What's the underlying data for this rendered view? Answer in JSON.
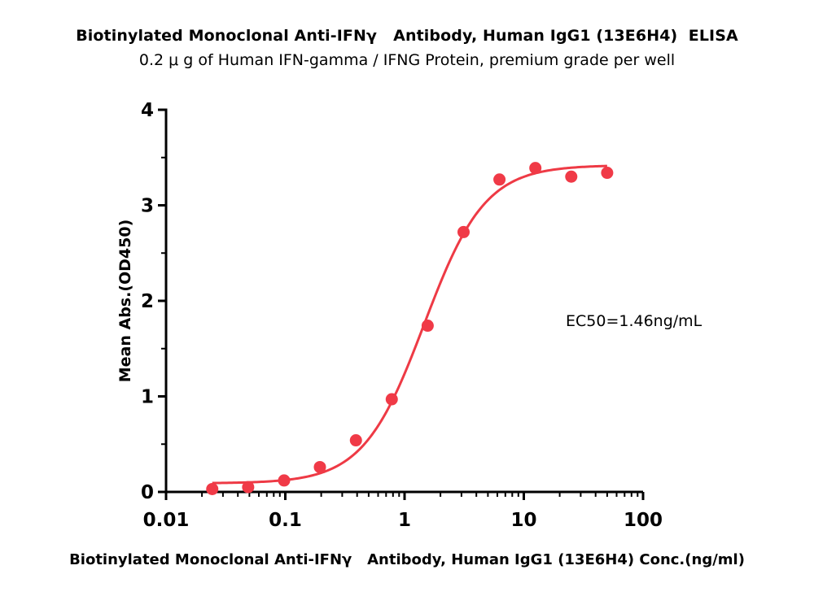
{
  "chart_data": {
    "type": "scatter",
    "title": "Biotinylated Monoclonal Anti-IFNγ   Antibody, Human IgG1 (13E6H4)  ELISA",
    "subtitle": "0.2 μ g of Human IFN-gamma / IFNG Protein, premium grade per well",
    "xlabel": "Biotinylated Monoclonal Anti-IFNγ   Antibody, Human IgG1 (13E6H4) Conc.(ng/ml)",
    "ylabel": "Mean Abs.(OD450)",
    "x_scale": "log",
    "xlim": [
      0.01,
      100
    ],
    "ylim": [
      0,
      4
    ],
    "x_ticks": [
      "0.01",
      "0.1",
      "1",
      "10",
      "100"
    ],
    "y_ticks": [
      "0",
      "1",
      "2",
      "3",
      "4"
    ],
    "grid": false,
    "annotation": "EC50=1.46ng/mL",
    "series": [
      {
        "type": "scatter",
        "x": [
          0.0244,
          0.0488,
          0.0977,
          0.195,
          0.391,
          0.781,
          1.5625,
          3.125,
          6.25,
          12.5,
          25,
          50
        ],
        "y": [
          0.03,
          0.05,
          0.12,
          0.26,
          0.54,
          0.97,
          1.74,
          2.72,
          3.27,
          3.39,
          3.3,
          3.34
        ]
      },
      {
        "type": "line",
        "fit": "4PL",
        "bottom": 0.09,
        "top": 3.42,
        "ec50": 1.46,
        "hill": 1.7,
        "x_range": [
          0.0244,
          50
        ]
      }
    ],
    "colors": {
      "points": "#f03a47",
      "curve": "#ee3a45",
      "axis": "#000000"
    }
  }
}
